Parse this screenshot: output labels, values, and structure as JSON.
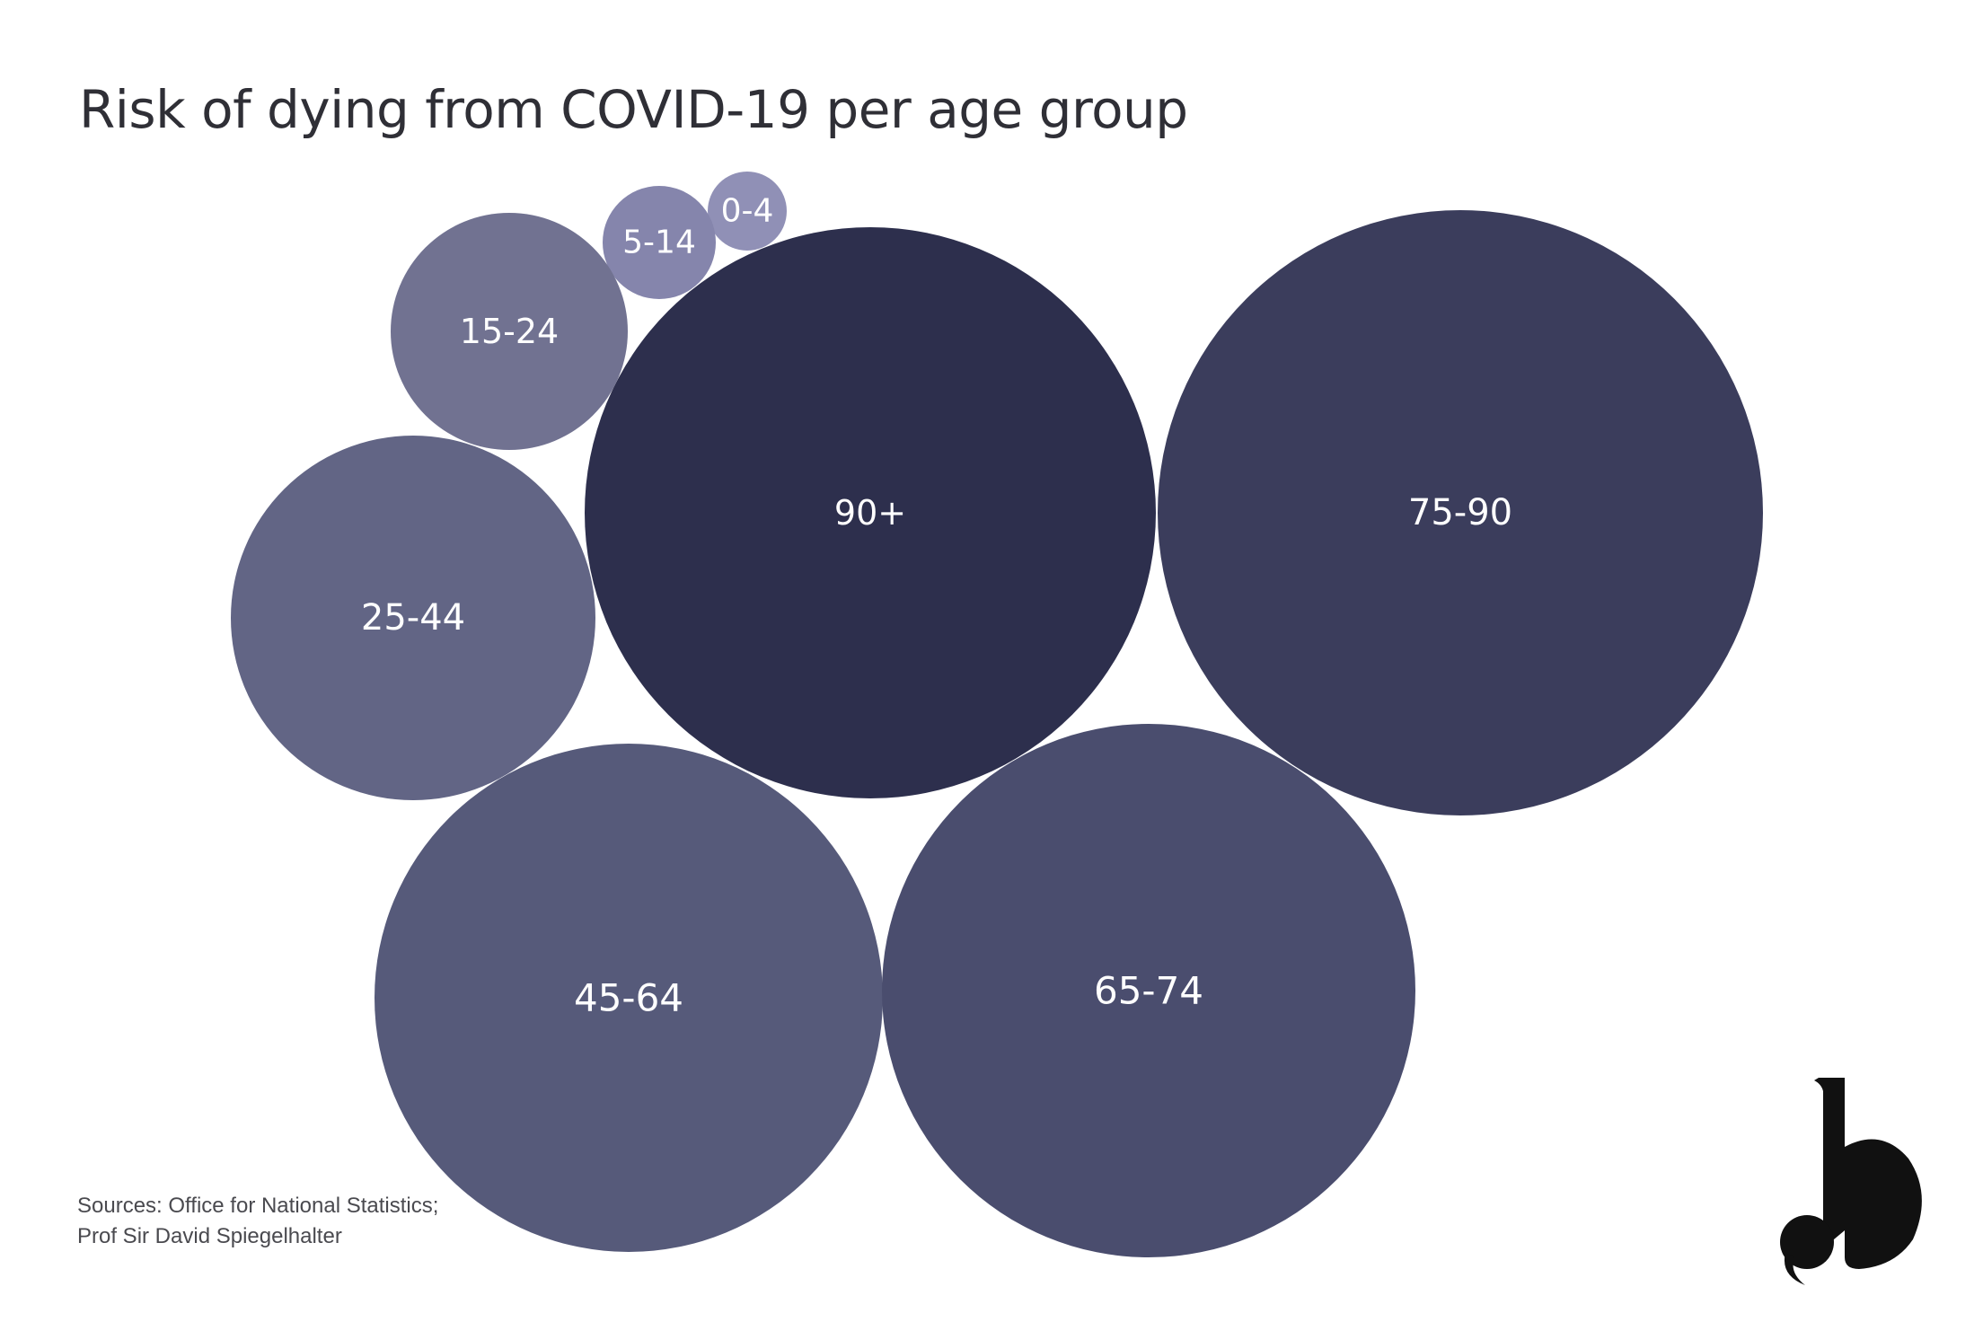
{
  "title": "Risk of dying from COVID-19 per age group",
  "sources": {
    "line1": "Sources: Office for National Statistics;",
    "line2": "Prof Sir David Spiegelhalter"
  },
  "logo": {
    "text": "b"
  },
  "colors": {
    "background": "#ffffff",
    "text": "#2f2f36",
    "label": "#ffffff",
    "logo": "#111111"
  },
  "chart_data": {
    "type": "bubble",
    "title": "Risk of dying from COVID-19 per age group",
    "size_encoding": "circle area",
    "categories": [
      "0-4",
      "5-14",
      "15-24",
      "25-44",
      "45-64",
      "65-74",
      "75-90",
      "90+"
    ],
    "colors": [
      "#9090b6",
      "#8585ac",
      "#717291",
      "#626585",
      "#565a7a",
      "#4a4d6e",
      "#3b3d5c",
      "#2d2f4d"
    ]
  }
}
